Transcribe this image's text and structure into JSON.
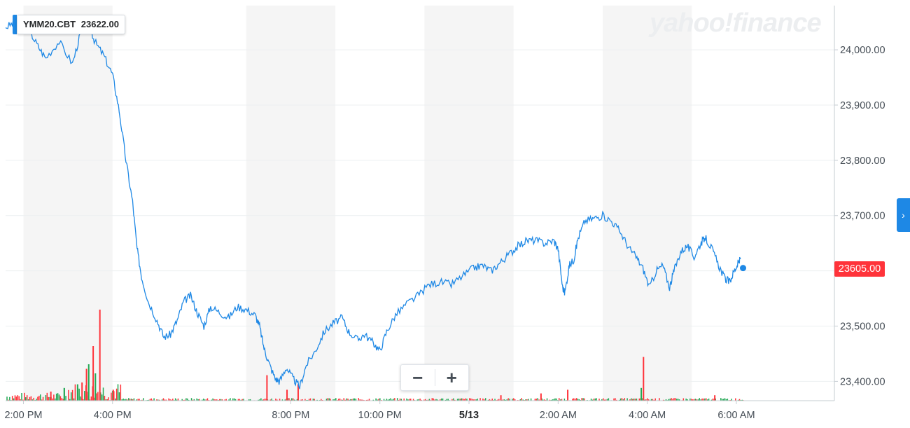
{
  "watermark": "yahoo!finance",
  "tooltip": {
    "symbol": "YMM20.CBT",
    "price": "23622.00"
  },
  "last_price_label": "23605.00",
  "zoom": {
    "minus": "−",
    "plus": "+"
  },
  "nav_arrow": "›",
  "colors": {
    "line": "#1e88e5",
    "shade": "#f5f5f5",
    "grid": "#eceff1",
    "volume_up": "#23a855",
    "volume_down": "#ff333a",
    "price_tag": "#ff333a"
  },
  "chart_data": {
    "type": "line",
    "title": "",
    "xlabel": "",
    "ylabel": "",
    "ylim": [
      23365,
      24080
    ],
    "x_range_hours": [
      -0.4,
      18.2
    ],
    "yticks": [
      "24,000.00",
      "23,900.00",
      "23,800.00",
      "23,700.00",
      "23,500.00",
      "23,400.00"
    ],
    "ytick_values": [
      24000,
      23900,
      23800,
      23700,
      23500,
      23400
    ],
    "xticks": [
      {
        "label": "2:00 PM",
        "t": 0,
        "bold": false
      },
      {
        "label": "4:00 PM",
        "t": 2,
        "bold": false
      },
      {
        "label": "8:00 PM",
        "t": 6,
        "bold": false
      },
      {
        "label": "10:00 PM",
        "t": 8,
        "bold": false
      },
      {
        "label": "5/13",
        "t": 10,
        "bold": true
      },
      {
        "label": "2:00 AM",
        "t": 12,
        "bold": false
      },
      {
        "label": "4:00 AM",
        "t": 14,
        "bold": false
      },
      {
        "label": "6:00 AM",
        "t": 16,
        "bold": false
      }
    ],
    "shaded_ranges": [
      [
        0,
        2
      ],
      [
        5,
        7
      ],
      [
        9,
        11
      ],
      [
        13,
        15
      ]
    ],
    "series": [
      {
        "points": [
          [
            -0.4,
            24040
          ],
          [
            -0.2,
            24050
          ],
          [
            0.1,
            24040
          ],
          [
            0.3,
            24010
          ],
          [
            0.5,
            23985
          ],
          [
            0.8,
            24015
          ],
          [
            1.1,
            23975
          ],
          [
            1.3,
            24035
          ],
          [
            1.5,
            24040
          ],
          [
            1.6,
            24015
          ],
          [
            1.8,
            23990
          ],
          [
            2.0,
            23955
          ],
          [
            2.15,
            23890
          ],
          [
            2.3,
            23800
          ],
          [
            2.45,
            23725
          ],
          [
            2.55,
            23640
          ],
          [
            2.65,
            23590
          ],
          [
            2.8,
            23545
          ],
          [
            3.0,
            23510
          ],
          [
            3.15,
            23480
          ],
          [
            3.3,
            23485
          ],
          [
            3.45,
            23510
          ],
          [
            3.6,
            23545
          ],
          [
            3.75,
            23555
          ],
          [
            3.9,
            23525
          ],
          [
            4.05,
            23500
          ],
          [
            4.2,
            23535
          ],
          [
            4.4,
            23525
          ],
          [
            4.6,
            23515
          ],
          [
            4.8,
            23535
          ],
          [
            5.0,
            23530
          ],
          [
            5.2,
            23520
          ],
          [
            5.3,
            23500
          ],
          [
            5.4,
            23460
          ],
          [
            5.5,
            23435
          ],
          [
            5.65,
            23405
          ],
          [
            5.75,
            23400
          ],
          [
            5.9,
            23425
          ],
          [
            6.05,
            23405
          ],
          [
            6.2,
            23390
          ],
          [
            6.35,
            23430
          ],
          [
            6.55,
            23455
          ],
          [
            6.75,
            23490
          ],
          [
            6.95,
            23505
          ],
          [
            7.15,
            23515
          ],
          [
            7.3,
            23490
          ],
          [
            7.5,
            23475
          ],
          [
            7.65,
            23485
          ],
          [
            7.85,
            23470
          ],
          [
            8.0,
            23455
          ],
          [
            8.15,
            23490
          ],
          [
            8.35,
            23520
          ],
          [
            8.6,
            23540
          ],
          [
            8.85,
            23555
          ],
          [
            9.1,
            23575
          ],
          [
            9.35,
            23580
          ],
          [
            9.6,
            23575
          ],
          [
            9.85,
            23590
          ],
          [
            10.1,
            23605
          ],
          [
            10.3,
            23610
          ],
          [
            10.5,
            23600
          ],
          [
            10.7,
            23615
          ],
          [
            10.9,
            23630
          ],
          [
            11.1,
            23645
          ],
          [
            11.3,
            23655
          ],
          [
            11.5,
            23655
          ],
          [
            11.7,
            23650
          ],
          [
            11.9,
            23655
          ],
          [
            12.0,
            23640
          ],
          [
            12.1,
            23570
          ],
          [
            12.15,
            23560
          ],
          [
            12.25,
            23610
          ],
          [
            12.35,
            23620
          ],
          [
            12.45,
            23660
          ],
          [
            12.6,
            23690
          ],
          [
            12.8,
            23695
          ],
          [
            13.0,
            23700
          ],
          [
            13.2,
            23690
          ],
          [
            13.4,
            23670
          ],
          [
            13.6,
            23640
          ],
          [
            13.75,
            23625
          ],
          [
            13.9,
            23605
          ],
          [
            14.05,
            23570
          ],
          [
            14.2,
            23600
          ],
          [
            14.35,
            23610
          ],
          [
            14.5,
            23570
          ],
          [
            14.6,
            23600
          ],
          [
            14.75,
            23635
          ],
          [
            14.9,
            23645
          ],
          [
            15.05,
            23625
          ],
          [
            15.2,
            23650
          ],
          [
            15.3,
            23660
          ],
          [
            15.45,
            23640
          ],
          [
            15.6,
            23610
          ],
          [
            15.75,
            23585
          ],
          [
            15.85,
            23580
          ],
          [
            15.95,
            23600
          ],
          [
            16.05,
            23615
          ],
          [
            16.1,
            23622
          ]
        ],
        "last_point": [
          16.15,
          23605
        ]
      }
    ],
    "volume": {
      "max": 100,
      "spikes": [
        {
          "t": 1.7,
          "v": 100,
          "dir": "down"
        },
        {
          "t": 1.55,
          "v": 60,
          "dir": "down"
        },
        {
          "t": 1.45,
          "v": 40,
          "dir": "up"
        },
        {
          "t": 1.4,
          "v": 35,
          "dir": "down"
        },
        {
          "t": 1.6,
          "v": 30,
          "dir": "up"
        },
        {
          "t": 1.3,
          "v": 20,
          "dir": "down"
        },
        {
          "t": 1.2,
          "v": 18,
          "dir": "up"
        },
        {
          "t": 2.0,
          "v": 12,
          "dir": "down"
        },
        {
          "t": 0.9,
          "v": 14,
          "dir": "up"
        },
        {
          "t": 0.6,
          "v": 10,
          "dir": "down"
        },
        {
          "t": 5.45,
          "v": 28,
          "dir": "down"
        },
        {
          "t": 5.9,
          "v": 12,
          "dir": "down"
        },
        {
          "t": 6.15,
          "v": 18,
          "dir": "down"
        },
        {
          "t": 10.7,
          "v": 6,
          "dir": "down"
        },
        {
          "t": 11.6,
          "v": 8,
          "dir": "down"
        },
        {
          "t": 12.2,
          "v": 12,
          "dir": "down"
        },
        {
          "t": 13.9,
          "v": 48,
          "dir": "down"
        },
        {
          "t": 13.85,
          "v": 14,
          "dir": "up"
        },
        {
          "t": 15.5,
          "v": 6,
          "dir": "down"
        }
      ]
    }
  }
}
